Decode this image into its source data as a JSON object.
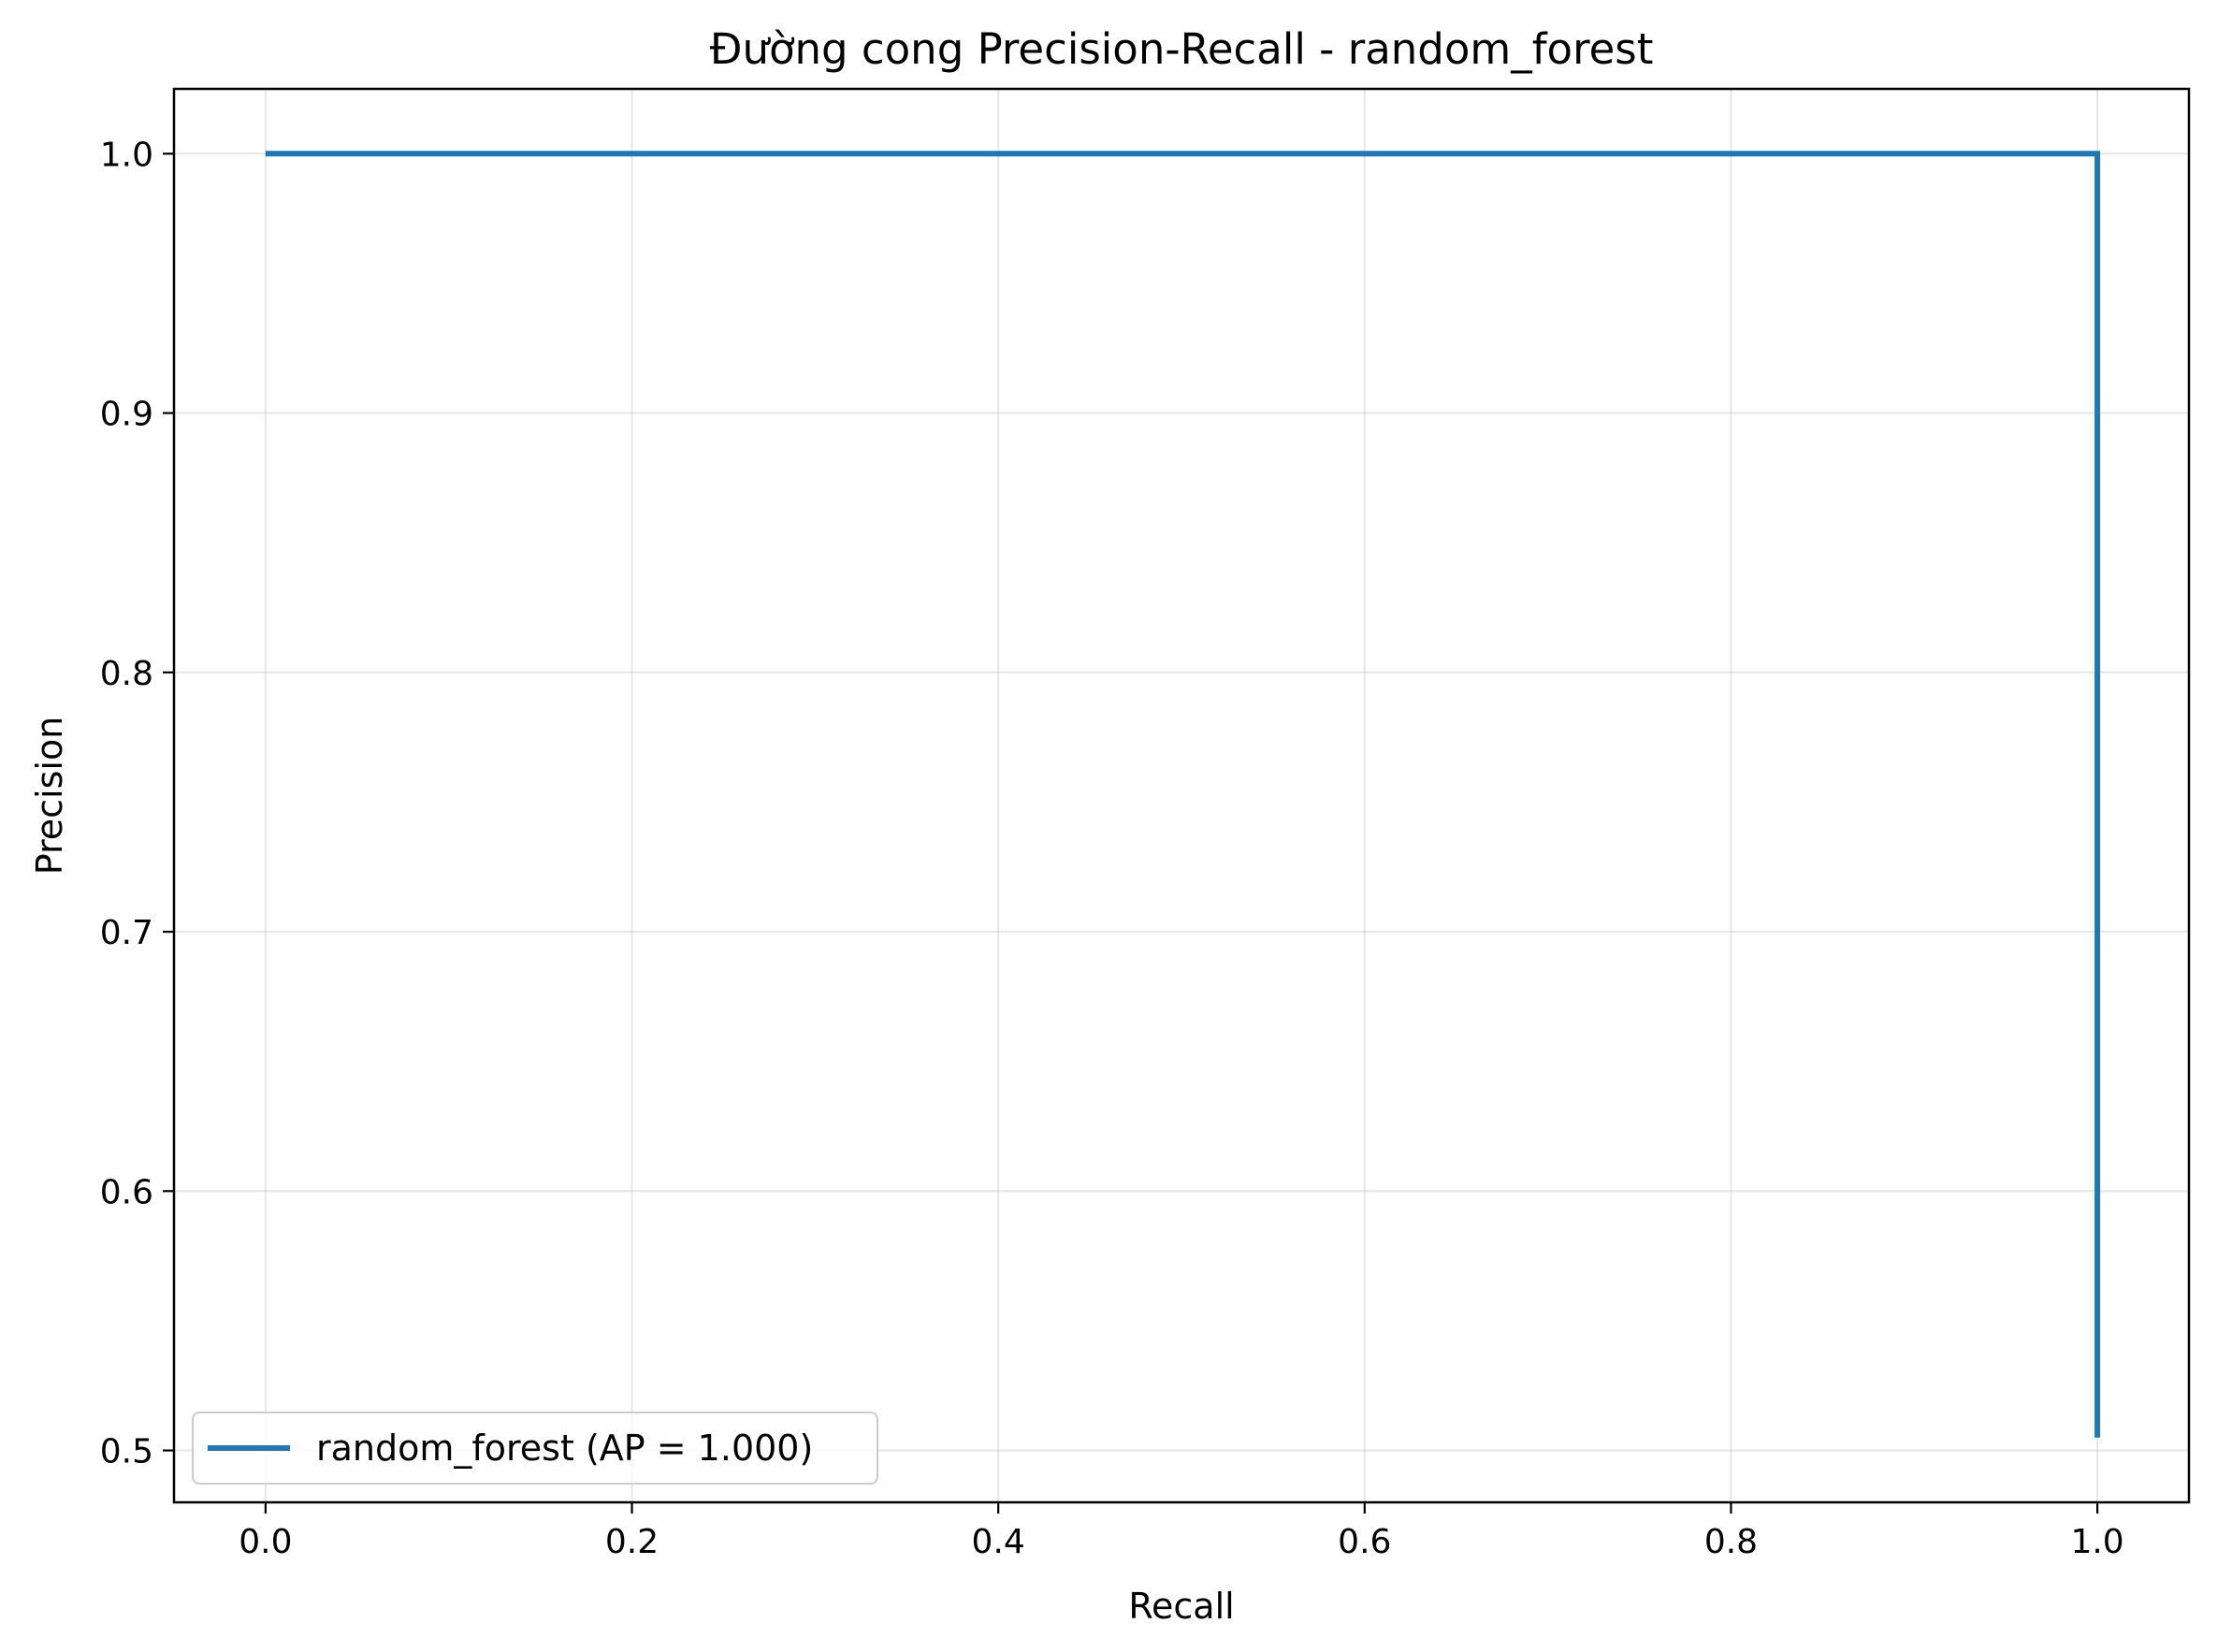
{
  "chart_data": {
    "type": "line",
    "title": "Đường cong Precision-Recall - random_forest",
    "xlabel": "Recall",
    "ylabel": "Precision",
    "xlim": [
      -0.05,
      1.05
    ],
    "ylim": [
      0.48,
      1.025
    ],
    "xticks": [
      0.0,
      0.2,
      0.4,
      0.6,
      0.8,
      1.0
    ],
    "xtick_labels": [
      "0.0",
      "0.2",
      "0.4",
      "0.6",
      "0.8",
      "1.0"
    ],
    "yticks": [
      0.5,
      0.6,
      0.7,
      0.8,
      0.9,
      1.0
    ],
    "ytick_labels": [
      "0.5",
      "0.6",
      "0.7",
      "0.8",
      "0.9",
      "1.0"
    ],
    "grid": true,
    "legend_position": "lower-left",
    "series": [
      {
        "name": "random_forest (AP = 1.000)",
        "color": "#1f77b4",
        "x": [
          0.0,
          1.0,
          1.0
        ],
        "y": [
          1.0,
          1.0,
          0.505
        ]
      }
    ]
  }
}
